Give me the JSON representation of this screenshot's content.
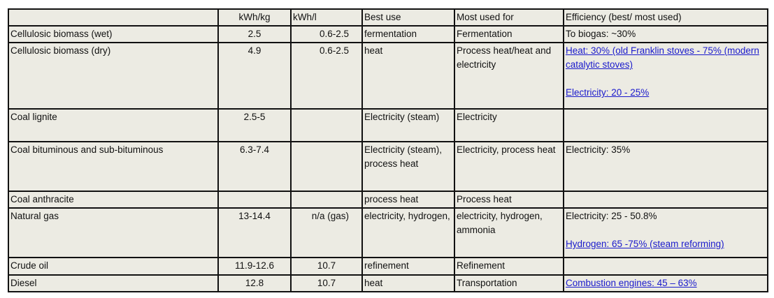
{
  "headers": [
    "",
    "kWh/kg",
    "kWh/l",
    "Best use",
    "Most used for",
    "Efficiency (best/ most used)"
  ],
  "rows": [
    {
      "fuel": "Cellulosic biomass (wet)",
      "kwh_kg": "2.5",
      "kwh_l": "0.6-2.5",
      "best_use": "fermentation",
      "most_used": "Fermentation",
      "eff1": "To biogas: ~30%",
      "eff2": ""
    },
    {
      "fuel": "Cellulosic biomass (dry)",
      "kwh_kg": "4.9",
      "kwh_l": "0.6-2.5",
      "best_use": "heat",
      "most_used": "Process heat/heat and electricity",
      "eff1": "Heat:  30% (old Franklin stoves - 75% (modern catalytic stoves)",
      "eff2": "Electricity: 20 - 25%"
    },
    {
      "fuel": "Coal lignite",
      "kwh_kg": "2.5-5",
      "kwh_l": "",
      "best_use": "Electricity (steam)",
      "most_used": "Electricity",
      "eff1": "",
      "eff2": ""
    },
    {
      "fuel": "Coal bituminous and sub-bituminous",
      "kwh_kg": "6.3-7.4",
      "kwh_l": "",
      "best_use": "Electricity (steam), process heat",
      "most_used": "Electricity, process heat",
      "eff1": "Electricity: 35%",
      "eff2": ""
    },
    {
      "fuel": "Coal anthracite",
      "kwh_kg": "",
      "kwh_l": "",
      "best_use": "process heat",
      "most_used": "Process heat",
      "eff1": "",
      "eff2": ""
    },
    {
      "fuel": "Natural gas",
      "kwh_kg": "13-14.4",
      "kwh_l": "n/a (gas)",
      "best_use": "electricity, hydrogen,",
      "most_used": "electricity, hydrogen, ammonia",
      "eff1": "Electricity: 25 - 50.8%",
      "eff2": "Hydrogen: 65 -75% (steam reforming)"
    },
    {
      "fuel": "Crude oil",
      "kwh_kg": "11.9-12.6",
      "kwh_l": "10.7",
      "best_use": "refinement",
      "most_used": "Refinement",
      "eff1": "",
      "eff2": ""
    },
    {
      "fuel": "Diesel",
      "kwh_kg": "12.8",
      "kwh_l": "10.7",
      "best_use": "heat",
      "most_used": "Transportation",
      "eff1": "Combustion engines: 45 – 63%",
      "eff2": ""
    }
  ]
}
